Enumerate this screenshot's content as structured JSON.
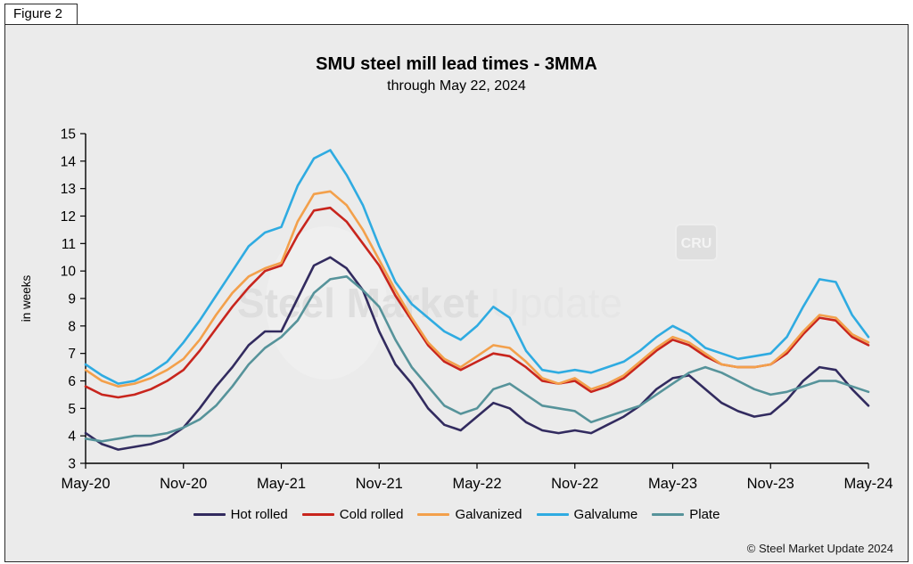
{
  "figure_label": "Figure 2",
  "copyright": "© Steel Market Update 2024",
  "watermark": {
    "text_bold": "Steel Market",
    "text_light": "Update",
    "badge": "CRU"
  },
  "colors": {
    "background": "#ebebeb",
    "axis": "#000000",
    "hot_rolled": "#322b5f",
    "cold_rolled": "#c8251d",
    "galvanized": "#f3a04b",
    "galvalume": "#2fabe1",
    "plate": "#56939a"
  },
  "chart_data": {
    "type": "line",
    "title": "SMU steel mill lead times - 3MMA",
    "subtitle": "through May 22, 2024",
    "xlabel": "",
    "ylabel": "in weeks",
    "ylim": [
      3,
      15
    ],
    "yticks": [
      3,
      4,
      5,
      6,
      7,
      8,
      9,
      10,
      11,
      12,
      13,
      14,
      15
    ],
    "grid": false,
    "legend_position": "bottom",
    "x_unit": "month",
    "n_points": 49,
    "x_start": "May-20",
    "x_end": "May-24",
    "x_tick_indices": [
      0,
      6,
      12,
      18,
      24,
      30,
      36,
      42,
      48
    ],
    "x_tick_labels": [
      "May-20",
      "Nov-20",
      "May-21",
      "Nov-21",
      "May-22",
      "Nov-22",
      "May-23",
      "Nov-23",
      "May-24"
    ],
    "series": [
      {
        "name": "Hot rolled",
        "color": "#322b5f",
        "values": [
          4.1,
          3.7,
          3.5,
          3.6,
          3.7,
          3.9,
          4.3,
          5.0,
          5.8,
          6.5,
          7.3,
          7.8,
          7.8,
          9.0,
          10.2,
          10.5,
          10.1,
          9.3,
          7.8,
          6.6,
          5.9,
          5.0,
          4.4,
          4.2,
          4.7,
          5.2,
          5.0,
          4.5,
          4.2,
          4.1,
          4.2,
          4.1,
          4.4,
          4.7,
          5.1,
          5.7,
          6.1,
          6.2,
          5.7,
          5.2,
          4.9,
          4.7,
          4.8,
          5.3,
          6.0,
          6.5,
          6.4,
          5.7,
          5.1
        ]
      },
      {
        "name": "Cold rolled",
        "color": "#c8251d",
        "values": [
          5.8,
          5.5,
          5.4,
          5.5,
          5.7,
          6.0,
          6.4,
          7.1,
          7.9,
          8.7,
          9.4,
          10.0,
          10.2,
          11.3,
          12.2,
          12.3,
          11.8,
          11.0,
          10.2,
          9.1,
          8.2,
          7.3,
          6.7,
          6.4,
          6.7,
          7.0,
          6.9,
          6.5,
          6.0,
          5.9,
          6.0,
          5.6,
          5.8,
          6.1,
          6.6,
          7.1,
          7.5,
          7.3,
          6.9,
          6.6,
          6.5,
          6.5,
          6.6,
          7.0,
          7.7,
          8.3,
          8.2,
          7.6,
          7.3
        ]
      },
      {
        "name": "Galvanized",
        "color": "#f3a04b",
        "values": [
          6.4,
          6.0,
          5.8,
          5.9,
          6.1,
          6.4,
          6.8,
          7.5,
          8.4,
          9.2,
          9.8,
          10.1,
          10.3,
          11.8,
          12.8,
          12.9,
          12.4,
          11.5,
          10.4,
          9.3,
          8.3,
          7.4,
          6.8,
          6.5,
          6.9,
          7.3,
          7.2,
          6.7,
          6.1,
          5.9,
          6.1,
          5.7,
          5.9,
          6.2,
          6.7,
          7.2,
          7.6,
          7.4,
          7.0,
          6.6,
          6.5,
          6.5,
          6.6,
          7.1,
          7.8,
          8.4,
          8.3,
          7.7,
          7.4
        ]
      },
      {
        "name": "Galvalume",
        "color": "#2fabe1",
        "values": [
          6.6,
          6.2,
          5.9,
          6.0,
          6.3,
          6.7,
          7.4,
          8.2,
          9.1,
          10.0,
          10.9,
          11.4,
          11.6,
          13.1,
          14.1,
          14.4,
          13.5,
          12.4,
          10.9,
          9.6,
          8.8,
          8.3,
          7.8,
          7.5,
          8.0,
          8.7,
          8.3,
          7.1,
          6.4,
          6.3,
          6.4,
          6.3,
          6.5,
          6.7,
          7.1,
          7.6,
          8.0,
          7.7,
          7.2,
          7.0,
          6.8,
          6.9,
          7.0,
          7.6,
          8.7,
          9.7,
          9.6,
          8.4,
          7.6
        ]
      },
      {
        "name": "Plate",
        "color": "#56939a",
        "values": [
          3.9,
          3.8,
          3.9,
          4.0,
          4.0,
          4.1,
          4.3,
          4.6,
          5.1,
          5.8,
          6.6,
          7.2,
          7.6,
          8.2,
          9.2,
          9.7,
          9.8,
          9.3,
          8.7,
          7.5,
          6.5,
          5.8,
          5.1,
          4.8,
          5.0,
          5.7,
          5.9,
          5.5,
          5.1,
          5.0,
          4.9,
          4.5,
          4.7,
          4.9,
          5.1,
          5.5,
          5.9,
          6.3,
          6.5,
          6.3,
          6.0,
          5.7,
          5.5,
          5.6,
          5.8,
          6.0,
          6.0,
          5.8,
          5.6
        ]
      }
    ]
  }
}
